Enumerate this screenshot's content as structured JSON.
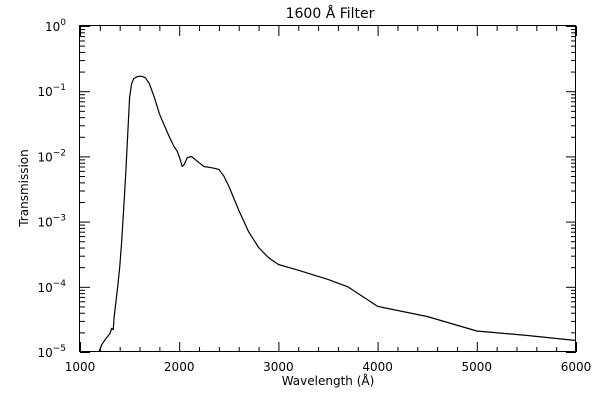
{
  "chart_data": {
    "type": "line",
    "title": "1600 Å Filter",
    "xlabel": "Wavelength (Å)",
    "ylabel": "Transmission",
    "xlim": [
      1000,
      6000
    ],
    "ylim": [
      1e-05,
      1
    ],
    "yscale": "log",
    "grid": false,
    "x_ticks": [
      "1000",
      "2000",
      "3000",
      "4000",
      "5000",
      "6000"
    ],
    "y_ticks": [
      {
        "base": "10",
        "exp": "−5"
      },
      {
        "base": "10",
        "exp": "−4"
      },
      {
        "base": "10",
        "exp": "−3"
      },
      {
        "base": "10",
        "exp": "−2"
      },
      {
        "base": "10",
        "exp": "−1"
      },
      {
        "base": "10",
        "exp": "0"
      }
    ],
    "series": [
      {
        "x": [
          1190,
          1220,
          1260,
          1300,
          1320,
          1335,
          1345,
          1360,
          1380,
          1400,
          1420,
          1440,
          1460,
          1480,
          1500,
          1520,
          1540,
          1570,
          1600,
          1630,
          1660,
          1700,
          1750,
          1800,
          1850,
          1900,
          1950,
          1980,
          2010,
          2030,
          2050,
          2080,
          2120,
          2160,
          2200,
          2250,
          2300,
          2350,
          2400,
          2450,
          2500,
          2600,
          2700,
          2800,
          2900,
          3000,
          3200,
          3500,
          3700,
          4000,
          4500,
          5000,
          5500,
          6000
        ],
        "y": [
          1e-05,
          1.3e-05,
          1.6e-05,
          1.9e-05,
          2.3e-05,
          2.2e-05,
          3.5e-05,
          5.5e-05,
          0.0001,
          0.0002,
          0.0005,
          0.0015,
          0.005,
          0.02,
          0.08,
          0.13,
          0.155,
          0.165,
          0.17,
          0.168,
          0.16,
          0.13,
          0.08,
          0.045,
          0.03,
          0.02,
          0.014,
          0.012,
          0.009,
          0.007,
          0.0075,
          0.0095,
          0.01,
          0.009,
          0.008,
          0.007,
          0.0068,
          0.0066,
          0.0063,
          0.005,
          0.0035,
          0.0015,
          0.0007,
          0.0004,
          0.00028,
          0.00022,
          0.00018,
          0.00013,
          0.0001,
          5e-05,
          3.5e-05,
          2.1e-05,
          1.8e-05,
          1.5e-05
        ]
      }
    ]
  }
}
